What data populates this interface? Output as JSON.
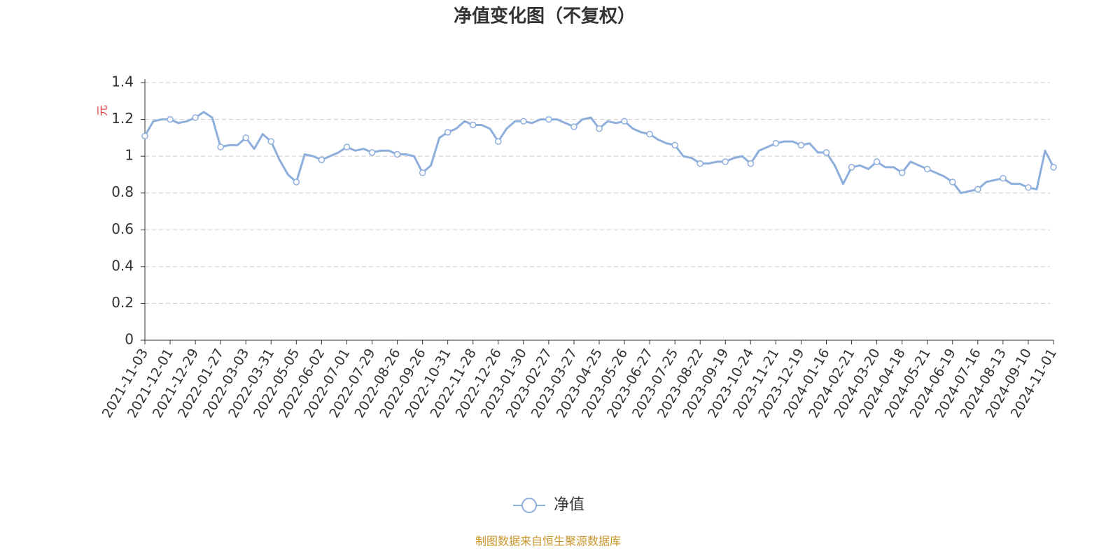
{
  "chart_data": {
    "type": "line",
    "title": "净值变化图（不复权）",
    "y_label": "元",
    "categories": [
      "2021-11-03",
      null,
      null,
      "2021-12-01",
      null,
      null,
      "2021-12-29",
      null,
      null,
      "2022-01-27",
      null,
      null,
      "2022-03-03",
      null,
      null,
      "2022-03-31",
      null,
      null,
      "2022-05-05",
      null,
      null,
      "2022-06-02",
      null,
      null,
      "2022-07-01",
      null,
      null,
      "2022-07-29",
      null,
      null,
      "2022-08-26",
      null,
      null,
      "2022-09-26",
      null,
      null,
      "2022-10-31",
      null,
      null,
      "2022-11-28",
      null,
      null,
      "2022-12-26",
      null,
      null,
      "2023-01-30",
      null,
      null,
      "2023-02-27",
      null,
      null,
      "2023-03-27",
      null,
      null,
      "2023-04-25",
      null,
      null,
      "2023-05-26",
      null,
      null,
      "2023-06-27",
      null,
      null,
      "2023-07-25",
      null,
      null,
      "2023-08-22",
      null,
      null,
      "2023-09-19",
      null,
      null,
      "2023-10-24",
      null,
      null,
      "2023-11-21",
      null,
      null,
      "2023-12-19",
      null,
      null,
      "2024-01-16",
      null,
      null,
      "2024-02-21",
      null,
      null,
      "2024-03-20",
      null,
      null,
      "2024-04-18",
      null,
      null,
      "2024-05-21",
      null,
      null,
      "2024-06-19",
      null,
      null,
      "2024-07-16",
      null,
      null,
      "2024-08-13",
      null,
      null,
      "2024-09-10",
      null,
      null,
      "2024-11-01"
    ],
    "series": [
      {
        "name": "净值",
        "color": "#8eaedc",
        "values": [
          1.11,
          1.19,
          1.2,
          1.2,
          1.18,
          1.19,
          1.21,
          1.24,
          1.21,
          1.05,
          1.06,
          1.06,
          1.1,
          1.04,
          1.12,
          1.08,
          0.98,
          0.9,
          0.86,
          1.01,
          1.0,
          0.98,
          1.0,
          1.02,
          1.05,
          1.03,
          1.04,
          1.02,
          1.03,
          1.03,
          1.01,
          1.01,
          1.0,
          0.91,
          0.95,
          1.1,
          1.13,
          1.15,
          1.19,
          1.17,
          1.17,
          1.15,
          1.08,
          1.15,
          1.19,
          1.19,
          1.18,
          1.2,
          1.2,
          1.2,
          1.18,
          1.16,
          1.2,
          1.21,
          1.15,
          1.19,
          1.18,
          1.19,
          1.15,
          1.13,
          1.12,
          1.09,
          1.07,
          1.06,
          1.0,
          0.99,
          0.96,
          0.96,
          0.97,
          0.97,
          0.99,
          1.0,
          0.96,
          1.03,
          1.05,
          1.07,
          1.08,
          1.08,
          1.06,
          1.07,
          1.02,
          1.02,
          0.95,
          0.85,
          0.94,
          0.95,
          0.93,
          0.97,
          0.94,
          0.94,
          0.91,
          0.97,
          0.95,
          0.93,
          0.91,
          0.89,
          0.86,
          0.8,
          0.81,
          0.82,
          0.86,
          0.87,
          0.88,
          0.85,
          0.85,
          0.83,
          0.82,
          1.03,
          0.94
        ]
      }
    ],
    "ylim": [
      0,
      1.4
    ],
    "yticks": [
      0,
      0.2,
      0.4,
      0.6,
      0.8,
      1,
      1.2,
      1.4
    ],
    "grid": true,
    "legend": "bottom",
    "source": "制图数据来自恒生聚源数据库"
  }
}
